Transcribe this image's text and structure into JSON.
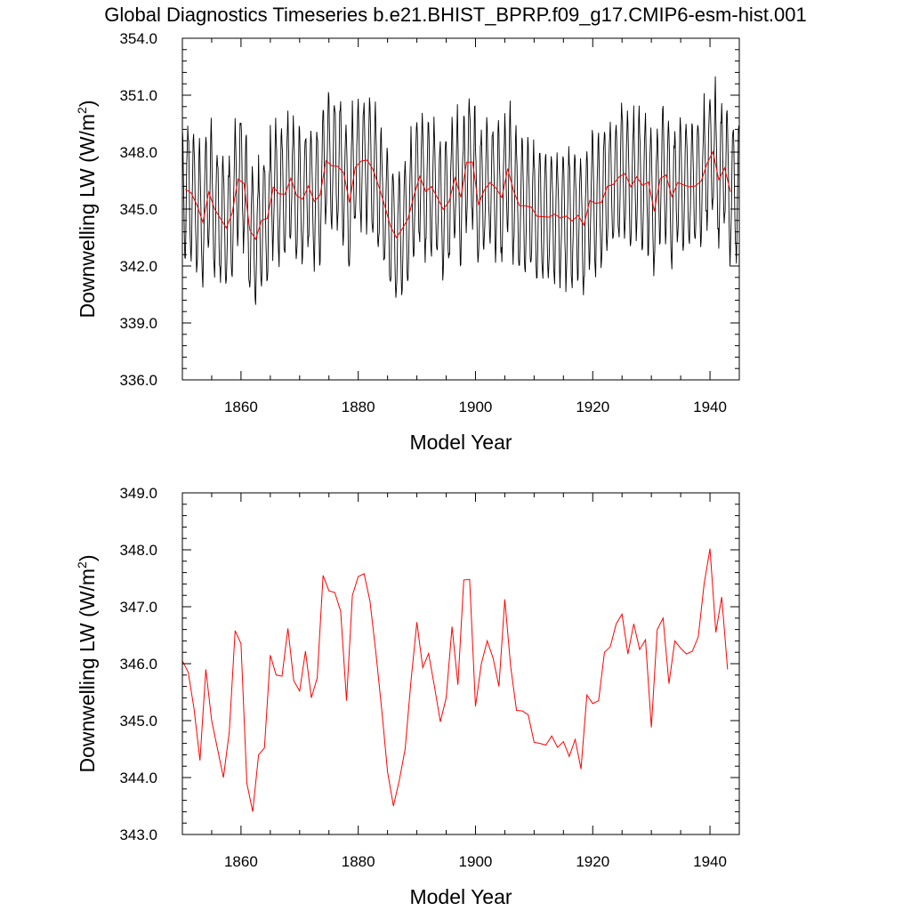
{
  "page": {
    "title": "Global Diagnostics Timeseries b.e21.BHIST_BPRP.f09_g17.CMIP6-esm-hist.001"
  },
  "chart_data": [
    {
      "type": "line",
      "title": "",
      "xlabel": "Model Year",
      "ylabel_main": "Downwelling LW (W/m",
      "ylabel_sup": "2",
      "ylabel_close": ")",
      "xlim": [
        1850,
        1945
      ],
      "ylim": [
        336.0,
        354.0
      ],
      "xticks": [
        1860,
        1880,
        1900,
        1920,
        1940
      ],
      "yticks": [
        336.0,
        339.0,
        342.0,
        345.0,
        348.0,
        351.0,
        354.0
      ],
      "ytick_labels": [
        "336.0",
        "339.0",
        "342.0",
        "345.0",
        "348.0",
        "351.0",
        "354.0"
      ],
      "grid": false,
      "series": [
        {
          "style": "monthly",
          "color": "#000000",
          "x_start": 1850.0,
          "x_step": 0.0833333,
          "amplitude": 3.3,
          "noise_amplitude": 0.8,
          "base_series": "annual"
        },
        {
          "style": "annual",
          "color": "#ff0000",
          "x_start": 1850.5,
          "x_step": 1.0,
          "values": [
            346.05,
            345.85,
            345.2,
            344.3,
            345.9,
            345.0,
            344.5,
            344.0,
            344.8,
            346.58,
            346.35,
            343.9,
            343.4,
            344.4,
            344.52,
            346.15,
            345.8,
            345.78,
            346.62,
            345.7,
            345.52,
            346.22,
            345.4,
            345.75,
            347.55,
            347.28,
            347.25,
            346.92,
            345.35,
            347.2,
            347.53,
            347.58,
            347.1,
            346.2,
            345.2,
            344.1,
            343.5,
            343.95,
            344.5,
            345.7,
            346.73,
            345.93,
            346.18,
            345.6,
            344.98,
            345.4,
            346.65,
            345.63,
            347.47,
            347.48,
            345.25,
            346.0,
            346.4,
            346.1,
            345.6,
            347.13,
            345.95,
            345.18,
            345.17,
            345.1,
            344.62,
            344.6,
            344.57,
            344.73,
            344.53,
            344.63,
            344.37,
            344.67,
            344.15,
            345.45,
            345.3,
            345.35,
            346.2,
            346.3,
            346.7,
            346.87,
            346.17,
            346.7,
            346.25,
            346.42,
            344.88,
            346.6,
            346.8,
            345.65,
            346.4,
            346.27,
            346.17,
            346.22,
            346.47,
            347.4,
            348.02,
            346.55,
            347.17,
            345.9
          ]
        }
      ]
    },
    {
      "type": "line",
      "title": "",
      "xlabel": "Model Year",
      "ylabel_main": "Downwelling LW (W/m",
      "ylabel_sup": "2",
      "ylabel_close": ")",
      "xlim": [
        1850,
        1945
      ],
      "ylim": [
        343.0,
        349.0
      ],
      "xticks": [
        1860,
        1880,
        1900,
        1920,
        1940
      ],
      "yticks": [
        343.0,
        344.0,
        345.0,
        346.0,
        347.0,
        348.0,
        349.0
      ],
      "ytick_labels": [
        "343.0",
        "344.0",
        "345.0",
        "346.0",
        "347.0",
        "348.0",
        "349.0"
      ],
      "grid": false,
      "series": [
        {
          "style": "annual",
          "color": "#ff0000",
          "x_start": 1850.0,
          "x_step": 1.0,
          "values_ref": "annual"
        }
      ]
    }
  ]
}
